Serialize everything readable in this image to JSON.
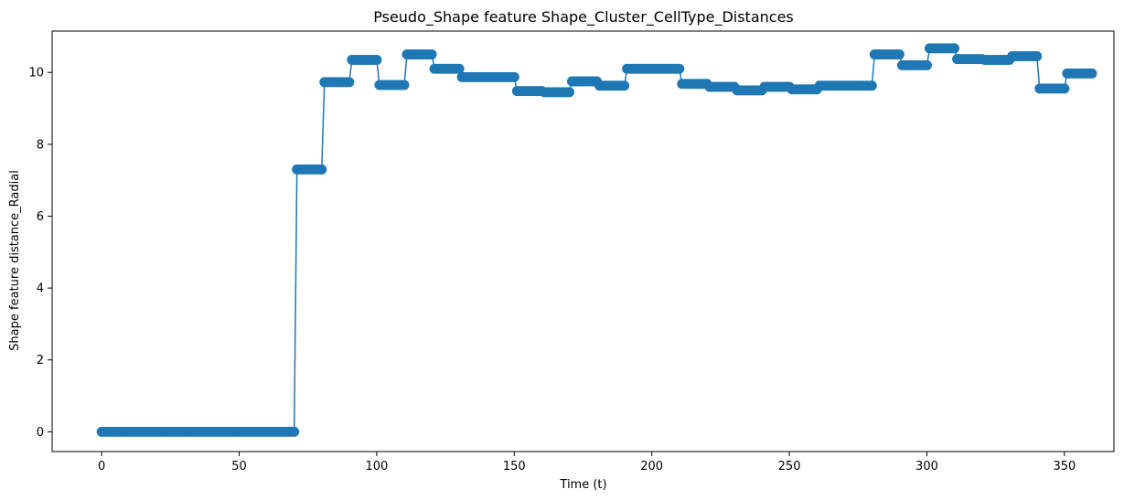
{
  "chart_data": {
    "type": "line",
    "title": "Pseudo_Shape feature Shape_Cluster_CellType_Distances",
    "xlabel": "Time (t)",
    "ylabel": "Shape feature distance_Radial",
    "xlim": [
      -18,
      368
    ],
    "ylim": [
      -0.55,
      11.15
    ],
    "xticks": [
      0,
      50,
      100,
      150,
      200,
      250,
      300,
      350
    ],
    "yticks": [
      0,
      2,
      4,
      6,
      8,
      10
    ],
    "grid": false,
    "legend": "none",
    "color": "#1f77b4",
    "marker": "circle",
    "segments": [
      [
        0,
        0.0
      ],
      [
        48,
        0.0
      ],
      [
        70,
        0.0
      ],
      [
        71,
        7.3
      ],
      [
        80,
        7.3
      ],
      [
        81,
        9.73
      ],
      [
        90,
        9.73
      ],
      [
        91,
        10.35
      ],
      [
        100,
        10.35
      ],
      [
        101,
        9.65
      ],
      [
        110,
        9.65
      ],
      [
        111,
        10.5
      ],
      [
        120,
        10.5
      ],
      [
        121,
        10.1
      ],
      [
        130,
        10.1
      ],
      [
        131,
        9.87
      ],
      [
        150,
        9.87
      ],
      [
        151,
        9.48
      ],
      [
        160,
        9.48
      ],
      [
        161,
        9.45
      ],
      [
        170,
        9.45
      ],
      [
        171,
        9.75
      ],
      [
        180,
        9.75
      ],
      [
        181,
        9.63
      ],
      [
        190,
        9.63
      ],
      [
        191,
        10.1
      ],
      [
        210,
        10.1
      ],
      [
        211,
        9.68
      ],
      [
        220,
        9.68
      ],
      [
        221,
        9.6
      ],
      [
        230,
        9.6
      ],
      [
        231,
        9.5
      ],
      [
        240,
        9.5
      ],
      [
        241,
        9.6
      ],
      [
        250,
        9.6
      ],
      [
        251,
        9.53
      ],
      [
        260,
        9.53
      ],
      [
        261,
        9.63
      ],
      [
        280,
        9.63
      ],
      [
        281,
        10.5
      ],
      [
        290,
        10.5
      ],
      [
        291,
        10.2
      ],
      [
        300,
        10.2
      ],
      [
        301,
        10.67
      ],
      [
        310,
        10.67
      ],
      [
        311,
        10.37
      ],
      [
        320,
        10.37
      ],
      [
        321,
        10.35
      ],
      [
        330,
        10.35
      ],
      [
        331,
        10.45
      ],
      [
        340,
        10.45
      ],
      [
        341,
        9.55
      ],
      [
        350,
        9.55
      ],
      [
        351,
        9.97
      ],
      [
        360,
        9.97
      ]
    ]
  }
}
